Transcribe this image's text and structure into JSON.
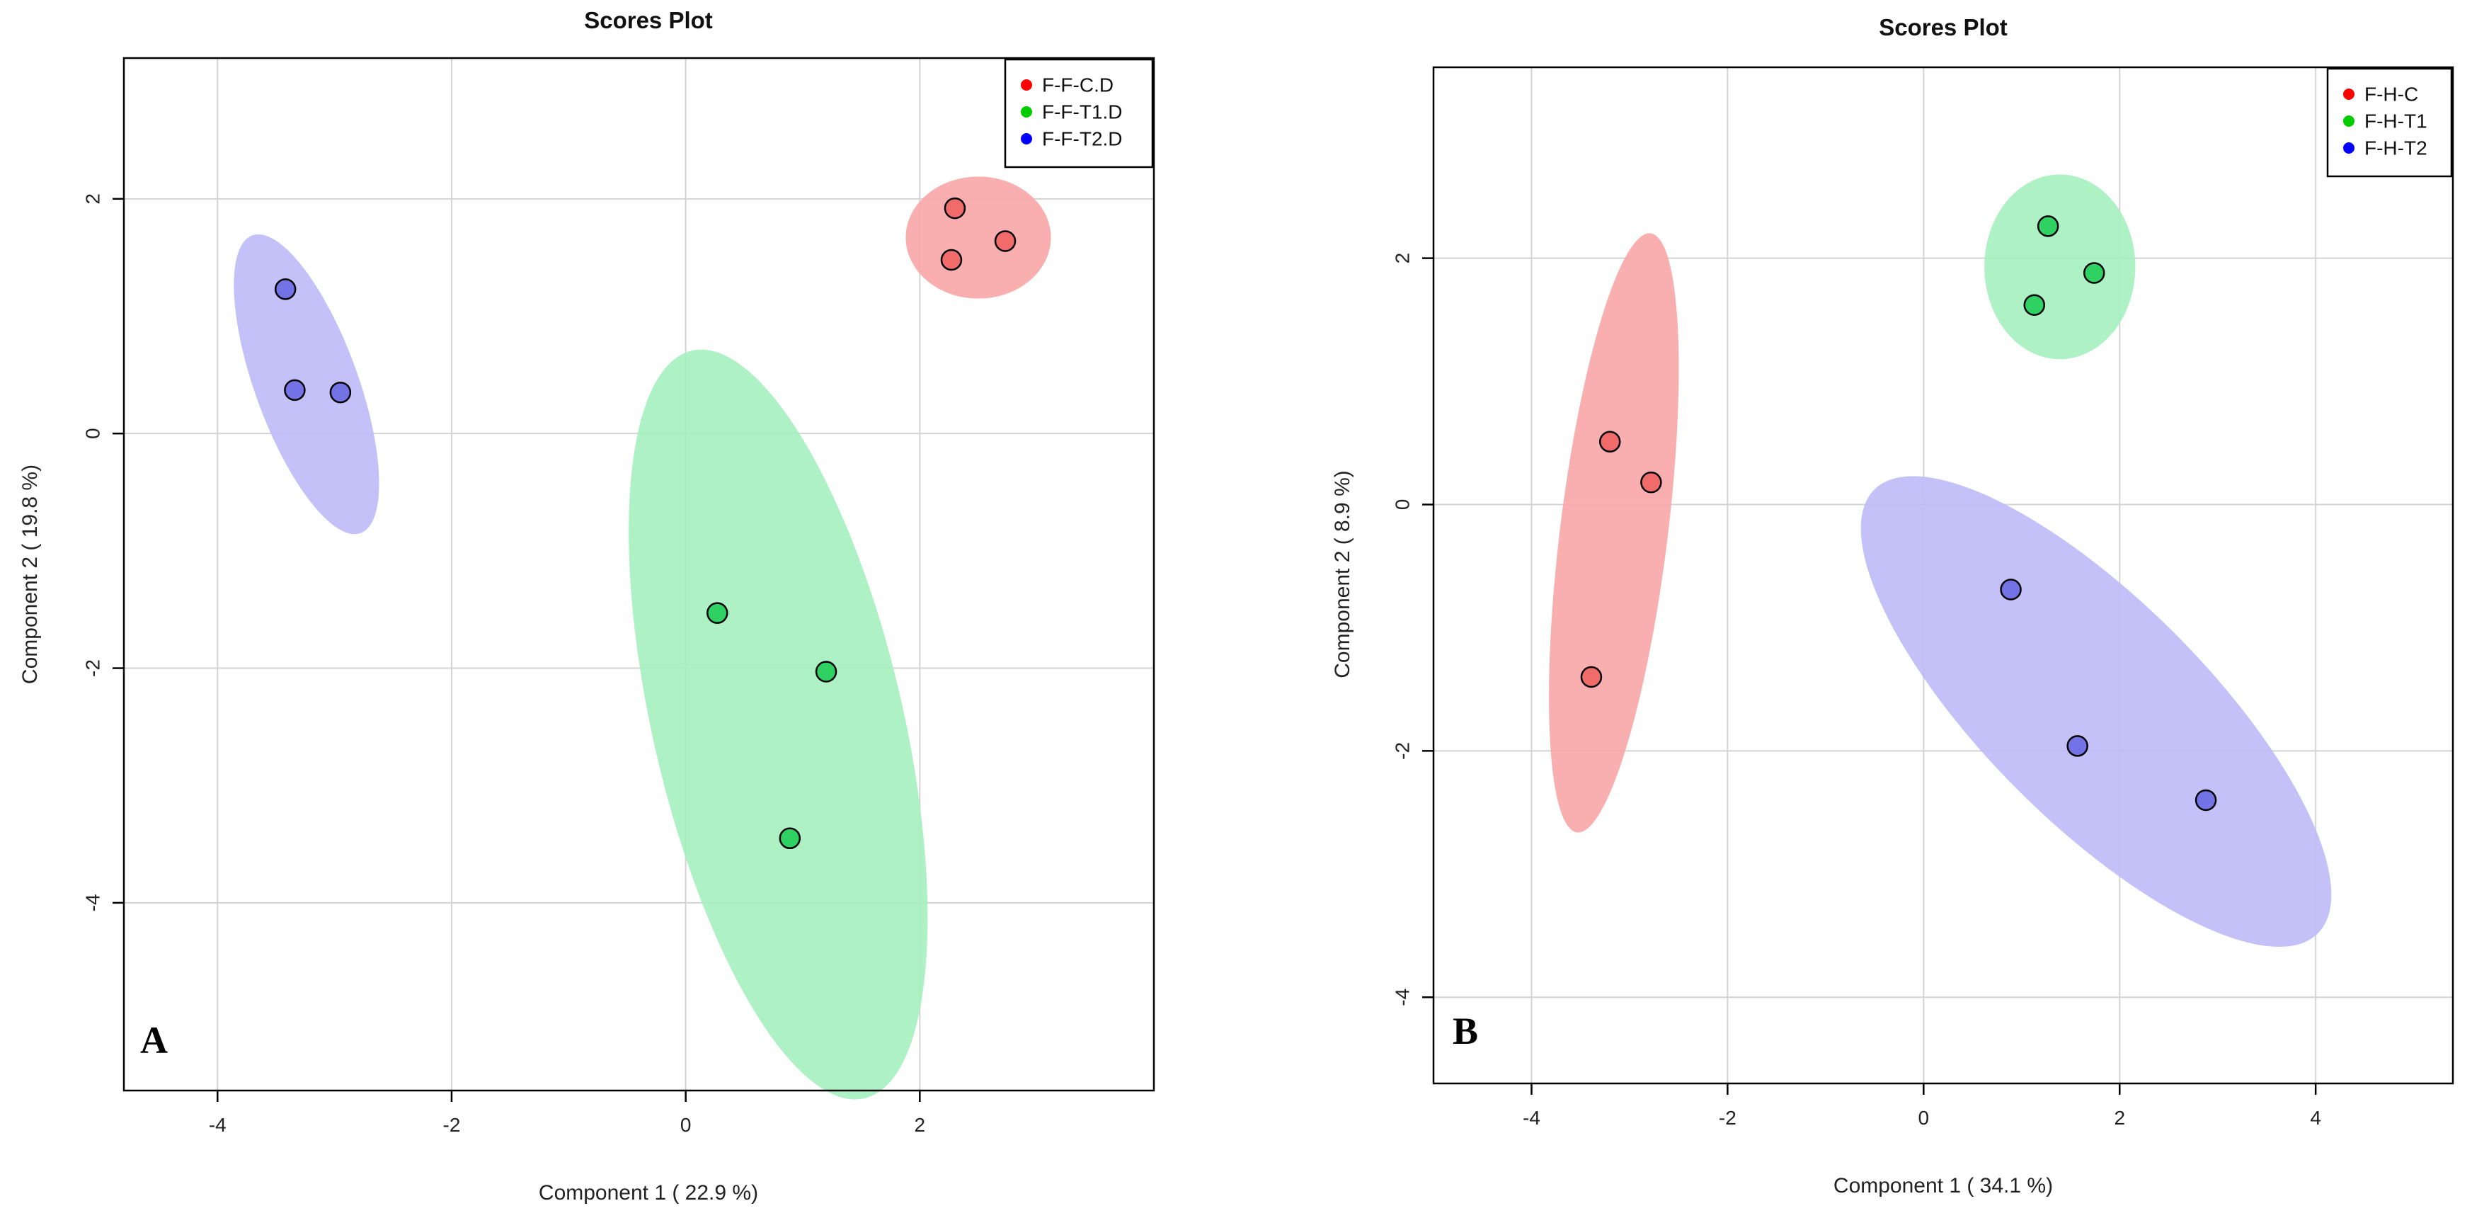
{
  "chart_data": [
    {
      "type": "scatter",
      "panel_label": "A",
      "title": "Scores Plot",
      "xlabel": "Component 1 ( 22.9 %)",
      "ylabel": "Component 2 ( 19.8 %)",
      "xlim": [
        -4.8,
        4.0
      ],
      "ylim": [
        -5.6,
        3.2
      ],
      "xticks": [
        -4,
        -2,
        0,
        2
      ],
      "yticks": [
        -4,
        -2,
        0,
        2
      ],
      "grid": true,
      "legend_position": "top-right",
      "series": [
        {
          "name": "F-F-C.D",
          "color": "#ff0000",
          "fill_color": "#f8a6a6",
          "point_color": "#f26b6b",
          "x": [
            2.3,
            2.73,
            2.27
          ],
          "y": [
            1.92,
            1.64,
            1.48
          ],
          "ellipse": {
            "cx": 2.5,
            "cy": 1.67,
            "rx": 0.62,
            "ry": 0.52,
            "angle": 0
          }
        },
        {
          "name": "F-F-T1.D",
          "color": "#00cc00",
          "fill_color": "#a4efbe",
          "point_color": "#2fd262",
          "x": [
            0.27,
            1.2,
            0.89
          ],
          "y": [
            -1.53,
            -2.03,
            -3.45
          ],
          "ellipse": {
            "cx": 0.79,
            "cy": -2.48,
            "rx": 1.07,
            "ry": 3.27,
            "angle": -13
          }
        },
        {
          "name": "F-F-T2.D",
          "color": "#0000ff",
          "fill_color": "#bcbaf6",
          "point_color": "#7373e6",
          "x": [
            -3.42,
            -3.34,
            -2.95
          ],
          "y": [
            1.23,
            0.37,
            0.35
          ],
          "ellipse": {
            "cx": -3.24,
            "cy": 0.42,
            "rx": 0.44,
            "ry": 1.35,
            "angle": -20
          }
        }
      ]
    },
    {
      "type": "scatter",
      "panel_label": "B",
      "title": "Scores Plot",
      "xlabel": "Component 1 ( 34.1 %)",
      "ylabel": "Component 2 ( 8.9 %)",
      "xlim": [
        -5.0,
        5.4
      ],
      "ylim": [
        -4.7,
        3.55
      ],
      "xticks": [
        -4,
        -2,
        0,
        2,
        4
      ],
      "yticks": [
        -4,
        -2,
        0,
        2
      ],
      "grid": true,
      "legend_position": "top-right",
      "series": [
        {
          "name": "F-H-C",
          "color": "#ff0000",
          "fill_color": "#f8a6a6",
          "point_color": "#f26b6b",
          "x": [
            -3.2,
            -2.78,
            -3.39
          ],
          "y": [
            0.51,
            0.18,
            -1.4
          ],
          "ellipse": {
            "cx": -3.16,
            "cy": -0.23,
            "rx": 0.55,
            "ry": 2.45,
            "angle": 7
          }
        },
        {
          "name": "F-H-T1",
          "color": "#00cc00",
          "fill_color": "#a4efbe",
          "point_color": "#2fd262",
          "x": [
            1.27,
            1.74,
            1.13
          ],
          "y": [
            2.26,
            1.88,
            1.62
          ],
          "ellipse": {
            "cx": 1.39,
            "cy": 1.93,
            "rx": 0.77,
            "ry": 0.75,
            "angle": 0
          }
        },
        {
          "name": "F-H-T2",
          "color": "#0000ff",
          "fill_color": "#bcbaf6",
          "point_color": "#7373e6",
          "x": [
            0.89,
            1.57,
            2.88
          ],
          "y": [
            -0.69,
            -1.96,
            -2.4
          ],
          "ellipse": {
            "cx": 1.76,
            "cy": -1.68,
            "rx": 3.2,
            "ry": 0.9,
            "angle": 45
          }
        }
      ]
    }
  ]
}
